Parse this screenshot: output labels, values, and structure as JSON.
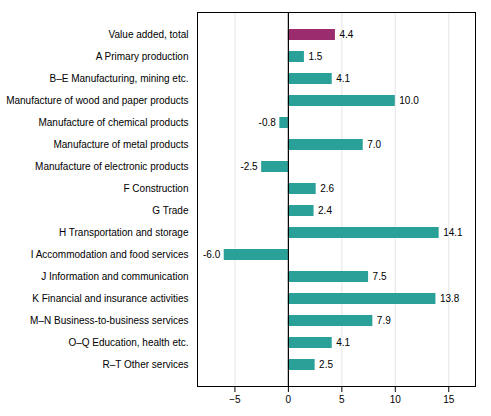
{
  "chart_data": {
    "type": "bar",
    "orientation": "horizontal",
    "categories": [
      "Value added, total",
      "A Primary production",
      "B–E Manufacturing, mining etc.",
      "Manufacture of wood and paper products",
      "Manufacture of chemical products",
      "Manufacture of metal products",
      "Manufacture of electronic products",
      "F Construction",
      "G Trade",
      "H Transportation and storage",
      "I Accommodation and food services",
      "J Information and communication",
      "K Financial and insurance activities",
      "M–N Business-to-business services",
      "O–Q Education, health etc.",
      "R–T Other services"
    ],
    "values": [
      4.4,
      1.5,
      4.1,
      10.0,
      -0.8,
      7.0,
      -2.5,
      2.6,
      2.4,
      14.1,
      -6.0,
      7.5,
      13.8,
      7.9,
      4.1,
      2.5
    ],
    "value_labels": [
      "4.4",
      "1.5",
      "4.1",
      "10.0",
      "-0.8",
      "7.0",
      "-2.5",
      "2.6",
      "2.4",
      "14.1",
      "-6.0",
      "7.5",
      "13.8",
      "7.9",
      "4.1",
      "2.5"
    ],
    "colors": [
      "#9b2d6f",
      "#2aa198",
      "#2aa198",
      "#2aa198",
      "#2aa198",
      "#2aa198",
      "#2aa198",
      "#2aa198",
      "#2aa198",
      "#2aa198",
      "#2aa198",
      "#2aa198",
      "#2aa198",
      "#2aa198",
      "#2aa198",
      "#2aa198"
    ],
    "xlim": [
      -8.5,
      17.5
    ],
    "xticks": [
      -5,
      0,
      5,
      10,
      15
    ],
    "grid": true,
    "data_labels": true
  }
}
